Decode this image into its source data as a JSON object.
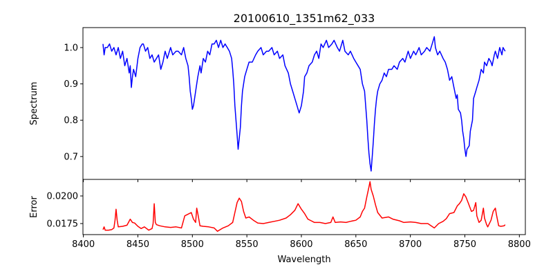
{
  "chart_data": [
    {
      "type": "line",
      "title": "20100610_1351m62_033",
      "xlabel": "",
      "ylabel": "Spectrum",
      "xlim": [
        8399.6,
        8805.5
      ],
      "ylim": [
        0.637,
        1.055
      ],
      "xticks": [
        8400,
        8450,
        8500,
        8550,
        8600,
        8650,
        8700,
        8750,
        8800
      ],
      "yticks": [
        0.7,
        0.8,
        0.9,
        1.0
      ],
      "ytick_labels": [
        "0.7",
        "0.8",
        "0.9",
        "1.0"
      ],
      "color": "#0000ff",
      "x": [
        8418,
        8419,
        8420,
        8422,
        8424,
        8426,
        8428,
        8430,
        8432,
        8434,
        8436,
        8438,
        8440,
        8442,
        8443,
        8444,
        8445,
        8446,
        8448,
        8450,
        8452,
        8454,
        8455,
        8457,
        8459,
        8461,
        8463,
        8465,
        8467,
        8469,
        8471,
        8473,
        8475,
        8477,
        8480,
        8482,
        8485,
        8487,
        8490,
        8492,
        8494,
        8496,
        8497,
        8498,
        8499,
        8500,
        8501,
        8502,
        8504,
        8505,
        8507,
        8508,
        8510,
        8512,
        8514,
        8516,
        8518,
        8520,
        8522,
        8524,
        8526,
        8528,
        8530,
        8532,
        8534,
        8536,
        8537,
        8538,
        8539,
        8540,
        8541,
        8542,
        8543,
        8544,
        8545,
        8546,
        8548,
        8550,
        8552,
        8555,
        8558,
        8560,
        8563,
        8565,
        8568,
        8570,
        8573,
        8575,
        8578,
        8580,
        8583,
        8585,
        8588,
        8590,
        8592,
        8594,
        8596,
        8597,
        8598,
        8600,
        8602,
        8603,
        8605,
        8607,
        8610,
        8612,
        8614,
        8616,
        8618,
        8620,
        8623,
        8625,
        8628,
        8630,
        8633,
        8635,
        8638,
        8640,
        8643,
        8645,
        8648,
        8650,
        8652,
        8654,
        8656,
        8658,
        8659,
        8660,
        8661,
        8662,
        8663,
        8664,
        8665,
        8666,
        8667,
        8668,
        8669,
        8670,
        8672,
        8674,
        8676,
        8678,
        8680,
        8683,
        8685,
        8688,
        8690,
        8693,
        8695,
        8698,
        8700,
        8703,
        8705,
        8708,
        8710,
        8713,
        8715,
        8718,
        8720,
        8722,
        8723,
        8725,
        8727,
        8730,
        8732,
        8734,
        8736,
        8738,
        8740,
        8742,
        8743,
        8744,
        8746,
        8747,
        8748,
        8749,
        8750,
        8751,
        8752,
        8754,
        8755,
        8757,
        8758,
        8760,
        8761,
        8763,
        8765,
        8767,
        8768,
        8770,
        8772,
        8774,
        8775,
        8777,
        8778,
        8780,
        8782,
        8784,
        8785,
        8787
      ],
      "y": [
        1.01,
        0.98,
        1.0,
        1.0,
        1.01,
        0.99,
        1.0,
        0.98,
        1.0,
        0.97,
        0.99,
        0.95,
        0.97,
        0.93,
        0.95,
        0.89,
        0.92,
        0.94,
        0.92,
        0.97,
        1.0,
        1.01,
        1.01,
        0.99,
        1.0,
        0.97,
        0.98,
        0.96,
        0.97,
        0.98,
        0.94,
        0.96,
        0.99,
        0.97,
        1.0,
        0.98,
        0.99,
        0.99,
        0.98,
        1.0,
        0.97,
        0.95,
        0.92,
        0.88,
        0.86,
        0.83,
        0.84,
        0.86,
        0.9,
        0.92,
        0.95,
        0.93,
        0.97,
        0.96,
        0.99,
        0.98,
        1.01,
        1.01,
        1.02,
        1.0,
        1.02,
        1.0,
        1.01,
        1.0,
        0.99,
        0.97,
        0.94,
        0.9,
        0.84,
        0.8,
        0.76,
        0.72,
        0.75,
        0.78,
        0.84,
        0.88,
        0.92,
        0.94,
        0.96,
        0.96,
        0.98,
        0.99,
        1.0,
        0.98,
        0.99,
        0.99,
        1.0,
        0.98,
        0.99,
        0.97,
        0.98,
        0.95,
        0.93,
        0.9,
        0.88,
        0.86,
        0.84,
        0.83,
        0.82,
        0.84,
        0.88,
        0.92,
        0.93,
        0.95,
        0.96,
        0.98,
        0.99,
        0.97,
        1.01,
        1.0,
        1.02,
        1.0,
        1.01,
        1.02,
        1.0,
        0.99,
        1.02,
        0.99,
        0.98,
        0.99,
        0.97,
        0.96,
        0.95,
        0.94,
        0.9,
        0.88,
        0.84,
        0.8,
        0.75,
        0.71,
        0.68,
        0.66,
        0.7,
        0.74,
        0.79,
        0.83,
        0.86,
        0.88,
        0.9,
        0.91,
        0.93,
        0.92,
        0.94,
        0.94,
        0.95,
        0.94,
        0.96,
        0.97,
        0.96,
        0.99,
        0.97,
        0.99,
        0.98,
        1.0,
        0.98,
        0.99,
        1.0,
        0.99,
        1.01,
        1.03,
        1.0,
        0.98,
        0.99,
        0.97,
        0.96,
        0.94,
        0.91,
        0.92,
        0.89,
        0.86,
        0.87,
        0.83,
        0.82,
        0.8,
        0.77,
        0.75,
        0.72,
        0.7,
        0.72,
        0.73,
        0.77,
        0.8,
        0.86,
        0.88,
        0.89,
        0.91,
        0.94,
        0.93,
        0.96,
        0.95,
        0.97,
        0.96,
        0.95,
        0.98,
        0.99,
        0.97,
        1.0,
        0.98,
        1.0,
        0.99
      ],
      "grid": false
    },
    {
      "type": "line",
      "title": "",
      "xlabel": "Wavelength",
      "ylabel": "Error",
      "xlim": [
        8399.6,
        8805.5
      ],
      "ylim": [
        0.0165,
        0.0215
      ],
      "xticks": [
        8400,
        8450,
        8500,
        8550,
        8600,
        8650,
        8700,
        8750,
        8800
      ],
      "xtick_labels": [
        "8400",
        "8450",
        "8500",
        "8550",
        "8600",
        "8650",
        "8700",
        "8750",
        "8800"
      ],
      "yticks": [
        0.0175,
        0.02
      ],
      "ytick_labels": [
        "0.0175",
        "0.0200"
      ],
      "color": "#ff0000",
      "x": [
        8418,
        8419,
        8420,
        8423,
        8426,
        8428,
        8429,
        8430,
        8431,
        8432,
        8436,
        8440,
        8443,
        8445,
        8447,
        8450,
        8453,
        8456,
        8460,
        8463,
        8464,
        8465,
        8466,
        8467,
        8470,
        8475,
        8480,
        8485,
        8490,
        8493,
        8496,
        8499,
        8501,
        8503,
        8504,
        8505,
        8507,
        8510,
        8515,
        8520,
        8523,
        8528,
        8533,
        8537,
        8539,
        8541,
        8543,
        8545,
        8547,
        8549,
        8552,
        8556,
        8560,
        8565,
        8570,
        8575,
        8580,
        8586,
        8590,
        8594,
        8597,
        8600,
        8603,
        8606,
        8609,
        8612,
        8617,
        8622,
        8627,
        8629,
        8631,
        8636,
        8641,
        8645,
        8650,
        8654,
        8656,
        8658,
        8660,
        8662,
        8663,
        8664,
        8666,
        8668,
        8670,
        8674,
        8680,
        8684,
        8690,
        8694,
        8700,
        8705,
        8710,
        8716,
        8722,
        8726,
        8730,
        8733,
        8736,
        8740,
        8743,
        8745,
        8747,
        8749,
        8751,
        8753,
        8756,
        8758,
        8760,
        8761,
        8763,
        8765,
        8767,
        8768,
        8770,
        8771,
        8774,
        8776,
        8778,
        8779,
        8781,
        8783,
        8786,
        8787
      ],
      "y": [
        0.01695,
        0.0172,
        0.0169,
        0.0169,
        0.01695,
        0.0171,
        0.0178,
        0.0188,
        0.0178,
        0.0172,
        0.01725,
        0.01735,
        0.0179,
        0.0176,
        0.01755,
        0.01725,
        0.01705,
        0.0172,
        0.0169,
        0.01705,
        0.0175,
        0.0193,
        0.0176,
        0.0174,
        0.0173,
        0.0172,
        0.01715,
        0.0172,
        0.0171,
        0.0182,
        0.01835,
        0.0185,
        0.0179,
        0.0176,
        0.0189,
        0.0184,
        0.0173,
        0.01725,
        0.0172,
        0.0171,
        0.0168,
        0.0171,
        0.0173,
        0.0176,
        0.0185,
        0.0194,
        0.0198,
        0.0195,
        0.0186,
        0.018,
        0.0181,
        0.0178,
        0.01755,
        0.0175,
        0.0176,
        0.0177,
        0.0178,
        0.018,
        0.0183,
        0.0187,
        0.0193,
        0.0188,
        0.0184,
        0.0179,
        0.01775,
        0.0176,
        0.0176,
        0.0175,
        0.0176,
        0.0181,
        0.0176,
        0.01765,
        0.0176,
        0.0177,
        0.0178,
        0.0181,
        0.0186,
        0.0189,
        0.0199,
        0.0208,
        0.0213,
        0.0206,
        0.02,
        0.0192,
        0.0185,
        0.018,
        0.0181,
        0.0179,
        0.01775,
        0.0176,
        0.01765,
        0.0176,
        0.0175,
        0.0175,
        0.0171,
        0.0175,
        0.0177,
        0.01795,
        0.0184,
        0.0185,
        0.0191,
        0.0193,
        0.0196,
        0.0202,
        0.0199,
        0.0194,
        0.0186,
        0.0187,
        0.0194,
        0.0182,
        0.0176,
        0.0178,
        0.0189,
        0.018,
        0.0174,
        0.0172,
        0.0178,
        0.0186,
        0.0189,
        0.0183,
        0.0173,
        0.01725,
        0.0173,
        0.0174
      ]
    }
  ]
}
